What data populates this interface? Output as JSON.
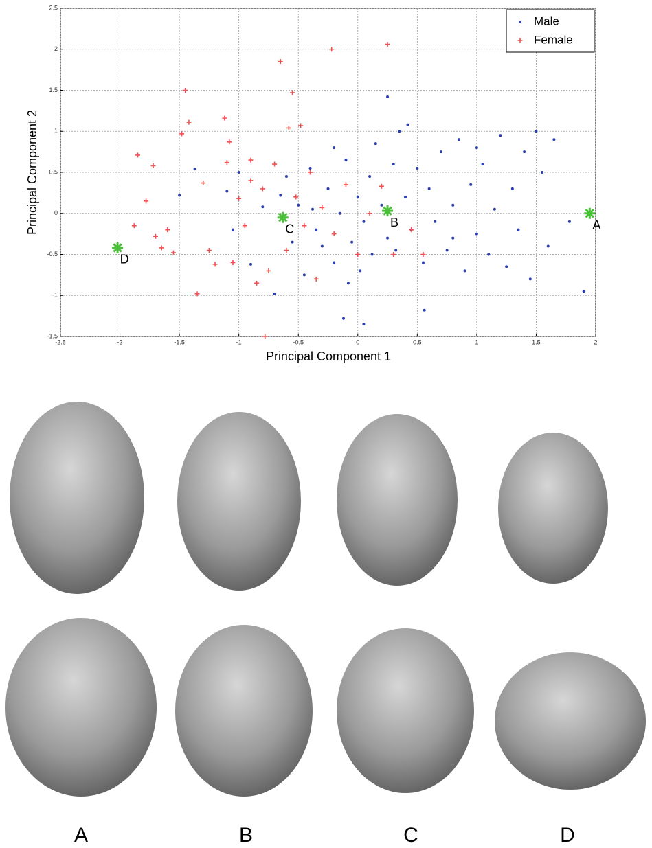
{
  "chart_data": {
    "type": "scatter",
    "x_label": "Principal Component 1",
    "y_label": "Principal Component 2",
    "xlim": [
      -2.5,
      2
    ],
    "ylim": [
      -1.5,
      2.5
    ],
    "xticks": [
      -2.5,
      -2,
      -1.5,
      -1,
      -0.5,
      0,
      0.5,
      1,
      1.5,
      2
    ],
    "yticks": [
      -1.5,
      -1,
      -0.5,
      0,
      0.5,
      1,
      1.5,
      2,
      2.5
    ],
    "grid": true,
    "legend": "upper-right",
    "series": [
      {
        "name": "Male",
        "color": "#2a3fb0",
        "marker": "dot",
        "x": [
          -1.5,
          -1.37,
          -1.1,
          -1.05,
          -1.0,
          -0.9,
          -0.8,
          -0.7,
          -0.65,
          -0.6,
          -0.55,
          -0.5,
          -0.45,
          -0.4,
          -0.38,
          -0.35,
          -0.3,
          -0.25,
          -0.2,
          -0.15,
          -0.1,
          -0.08,
          -0.05,
          0.0,
          0.02,
          0.05,
          0.1,
          0.12,
          0.15,
          0.2,
          0.25,
          0.3,
          0.32,
          0.35,
          0.4,
          0.45,
          0.5,
          0.55,
          0.56,
          0.6,
          0.65,
          0.7,
          0.75,
          0.8,
          0.85,
          0.9,
          0.95,
          1.0,
          1.05,
          1.1,
          1.15,
          1.2,
          1.25,
          1.3,
          1.35,
          1.4,
          1.45,
          1.5,
          1.55,
          1.6,
          1.65,
          1.78,
          1.9,
          -0.12,
          0.05,
          0.25,
          0.42,
          -0.2,
          0.8,
          1.0
        ],
        "values": [
          0.22,
          0.54,
          0.27,
          -0.2,
          0.5,
          -0.62,
          0.08,
          -0.98,
          0.22,
          0.45,
          -0.35,
          0.1,
          -0.75,
          0.55,
          0.05,
          -0.2,
          -0.4,
          0.3,
          -0.6,
          0.0,
          0.65,
          -0.85,
          -0.35,
          0.2,
          -0.7,
          -0.1,
          0.45,
          -0.5,
          0.85,
          0.1,
          -0.3,
          0.6,
          -0.45,
          1.0,
          0.2,
          -0.2,
          0.55,
          -0.6,
          -1.18,
          0.3,
          -0.1,
          0.75,
          -0.45,
          0.1,
          0.9,
          -0.7,
          0.35,
          -0.25,
          0.6,
          -0.5,
          0.05,
          0.95,
          -0.65,
          0.3,
          -0.2,
          0.75,
          -0.8,
          1.0,
          0.5,
          -0.4,
          0.9,
          -0.1,
          -0.95,
          -1.28,
          -1.35,
          1.42,
          1.08,
          0.8,
          -0.3,
          0.8
        ]
      },
      {
        "name": "Female",
        "color": "#f05050",
        "marker": "plus",
        "x": [
          -1.85,
          -1.88,
          -1.78,
          -1.72,
          -1.7,
          -1.65,
          -1.6,
          -1.55,
          -1.48,
          -1.45,
          -1.42,
          -1.35,
          -1.3,
          -1.25,
          -1.12,
          -1.1,
          -1.08,
          -1.05,
          -1.0,
          -0.95,
          -0.9,
          -0.85,
          -0.8,
          -0.78,
          -0.75,
          -0.7,
          -0.65,
          -0.6,
          -0.58,
          -0.55,
          -0.52,
          -0.48,
          -0.45,
          -0.4,
          -0.35,
          -0.3,
          -0.22,
          -0.2,
          -0.1,
          0.0,
          0.1,
          0.2,
          0.25,
          0.3,
          0.45,
          0.55,
          -0.9,
          -1.2
        ],
        "values": [
          0.71,
          -0.15,
          0.15,
          0.58,
          -0.28,
          -0.42,
          -0.2,
          -0.48,
          0.97,
          1.5,
          1.11,
          -0.98,
          0.37,
          -0.45,
          1.16,
          0.62,
          0.87,
          -0.6,
          0.18,
          -0.15,
          0.4,
          -0.85,
          0.3,
          -1.5,
          -0.7,
          0.6,
          1.85,
          -0.45,
          1.04,
          1.47,
          0.2,
          1.07,
          -0.15,
          0.5,
          -0.8,
          0.07,
          2.0,
          -0.25,
          0.35,
          -0.5,
          0.0,
          0.33,
          2.06,
          -0.5,
          -0.2,
          -0.5,
          0.65,
          -0.62
        ]
      }
    ],
    "annotations": [
      {
        "label": "A",
        "x": 1.95,
        "y": 0
      },
      {
        "label": "B",
        "x": 0.25,
        "y": 0.03
      },
      {
        "label": "C",
        "x": -0.63,
        "y": -0.05
      },
      {
        "label": "D",
        "x": -2.02,
        "y": -0.42
      }
    ],
    "annotation_color": "#4cbf3a"
  },
  "faces": {
    "labels": [
      "A",
      "B",
      "C",
      "D"
    ]
  }
}
